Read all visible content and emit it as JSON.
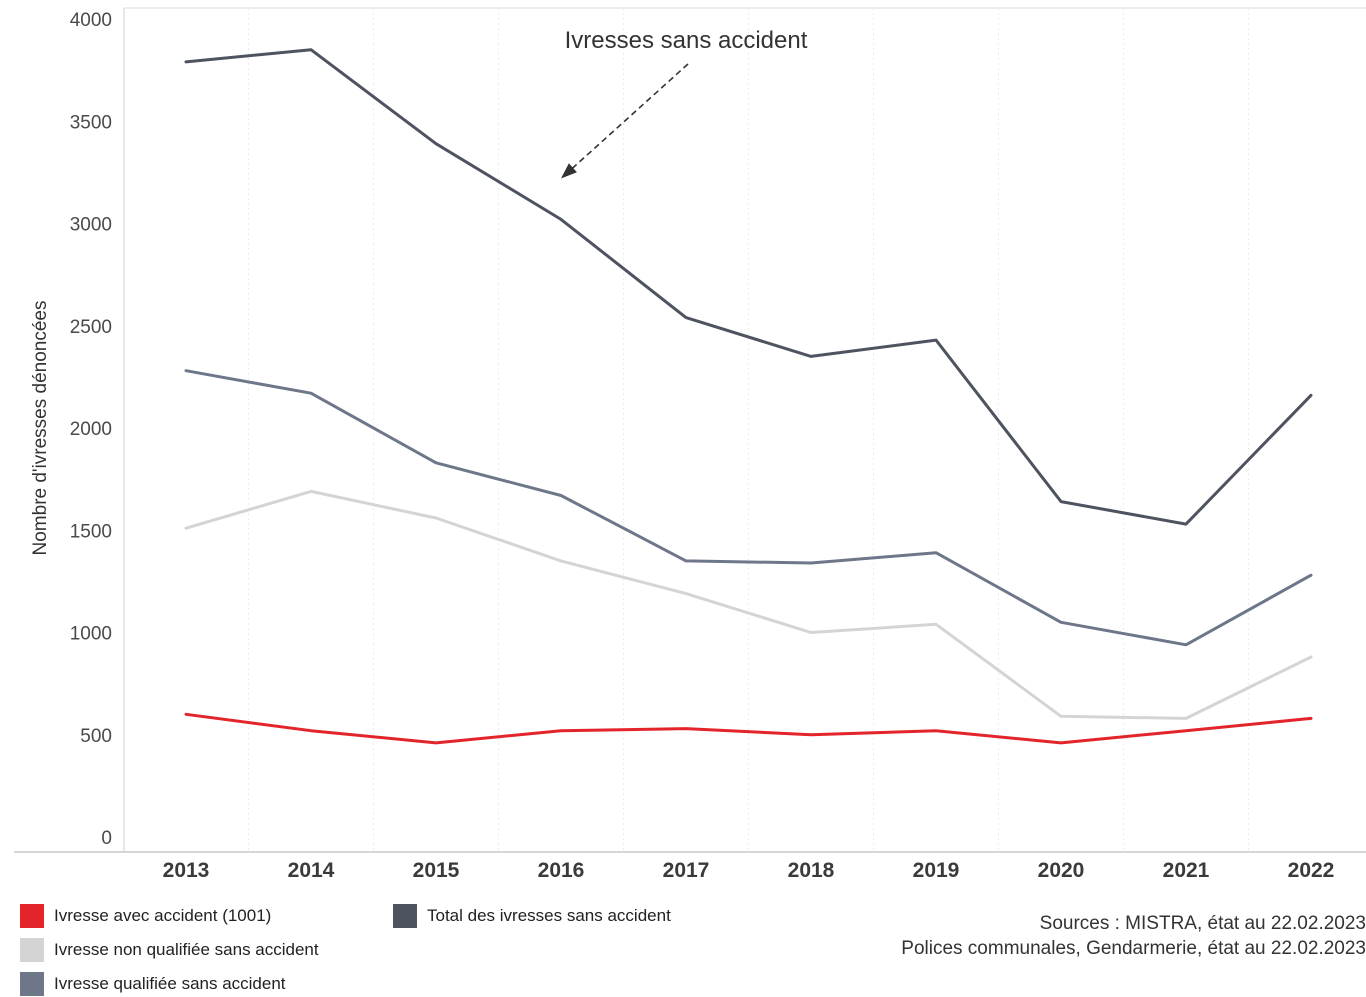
{
  "chart_data": {
    "type": "line",
    "categories": [
      "2013",
      "2014",
      "2015",
      "2016",
      "2017",
      "2018",
      "2019",
      "2020",
      "2021",
      "2022"
    ],
    "ylabel": "Nombre d'ivresses dénoncées",
    "yticks": [
      0,
      500,
      1000,
      1500,
      2000,
      2500,
      3000,
      3500,
      4000
    ],
    "ylim": [
      0,
      4000
    ],
    "grid": "vertical",
    "legend_position": "bottom",
    "series": [
      {
        "name": "Total des ivresses sans accident",
        "color": "#4e5360",
        "values": [
          3790,
          3850,
          3390,
          3020,
          2540,
          2350,
          2430,
          1640,
          1530,
          2160
        ]
      },
      {
        "name": "Ivresse qualifiée sans accident",
        "color": "#6e7789",
        "values": [
          2280,
          2170,
          1830,
          1670,
          1350,
          1340,
          1390,
          1050,
          940,
          1280
        ]
      },
      {
        "name": "Ivresse non qualifiée sans accident",
        "color": "#d4d4d4",
        "values": [
          1510,
          1690,
          1560,
          1350,
          1190,
          1000,
          1040,
          590,
          580,
          880
        ]
      },
      {
        "name": "Ivresse avec accident (1001)",
        "color": "#e3242b",
        "values": [
          600,
          520,
          460,
          520,
          530,
          500,
          520,
          460,
          520,
          580
        ]
      }
    ],
    "annotations": [
      {
        "text": "Ivresses sans accident",
        "arrow_to": {
          "x": "2016",
          "y": 3220
        }
      }
    ]
  },
  "legend": [
    {
      "label": "Ivresse avec accident (1001)",
      "color": "#e3242b"
    },
    {
      "label": "Ivresse non qualifiée sans accident",
      "color": "#d4d4d4"
    },
    {
      "label": "Ivresse qualifiée sans accident",
      "color": "#6e7789"
    },
    {
      "label": "Total des ivresses sans accident",
      "color": "#4e5360"
    }
  ],
  "sources": {
    "line1": "Sources : MISTRA, état au 22.02.2023",
    "line2": "Polices communales, Gendarmerie, état au 22.02.2023"
  }
}
